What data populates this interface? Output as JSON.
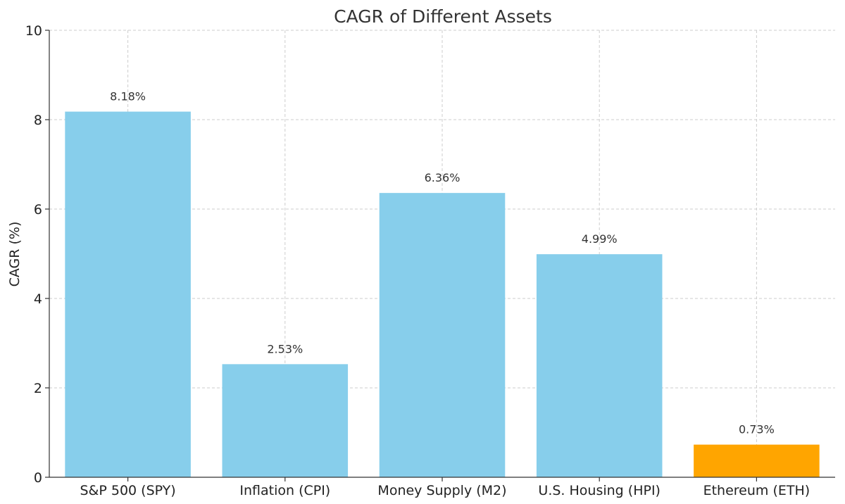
{
  "chart_data": {
    "type": "bar",
    "title": "CAGR of Different Assets",
    "xlabel": "",
    "ylabel": "CAGR (%)",
    "ylim": [
      0,
      10
    ],
    "yticks": [
      0,
      2,
      4,
      6,
      8,
      10
    ],
    "grid": true,
    "categories": [
      "S&P 500 (SPY)",
      "Inflation (CPI)",
      "Money Supply (M2)",
      "U.S. Housing (HPI)",
      "Ethereum (ETH)"
    ],
    "values": [
      8.18,
      2.53,
      6.36,
      4.99,
      0.73
    ],
    "data_labels": [
      "8.18%",
      "2.53%",
      "6.36%",
      "4.99%",
      "0.73%"
    ],
    "colors": [
      "#87ceeb",
      "#87ceeb",
      "#87ceeb",
      "#87ceeb",
      "#ffa500"
    ]
  }
}
